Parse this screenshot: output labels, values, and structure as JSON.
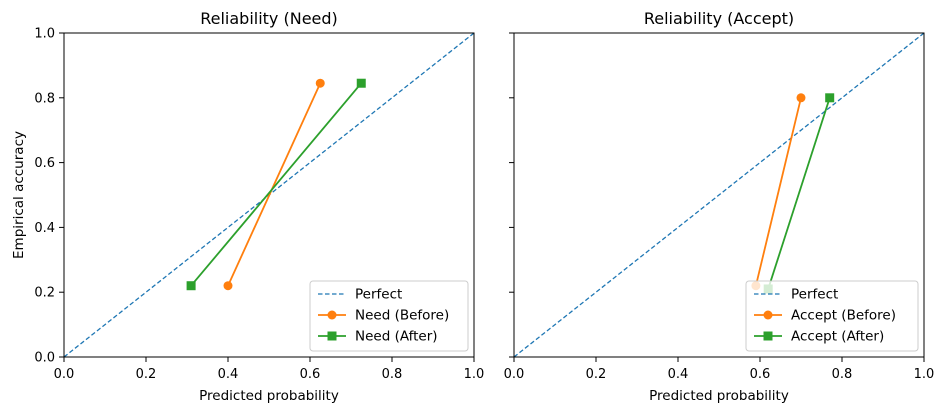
{
  "chart_data": [
    {
      "type": "line",
      "title": "Reliability (Need)",
      "xlabel": "Predicted probability",
      "ylabel": "Empirical accuracy",
      "xlim": [
        0.0,
        1.0
      ],
      "ylim": [
        0.0,
        1.0
      ],
      "xticks": [
        "0.0",
        "0.2",
        "0.4",
        "0.6",
        "0.8",
        "1.0"
      ],
      "yticks": [
        "0.0",
        "0.2",
        "0.4",
        "0.6",
        "0.8",
        "1.0"
      ],
      "legend_position": "lower-right",
      "series": [
        {
          "name": "Perfect",
          "style": "dashed",
          "marker": "none",
          "color": "#1f77b4",
          "x": [
            0.0,
            1.0
          ],
          "y": [
            0.0,
            1.0
          ]
        },
        {
          "name": "Need (Before)",
          "style": "solid",
          "marker": "circle",
          "color": "#ff7f0e",
          "x": [
            0.4,
            0.625
          ],
          "y": [
            0.22,
            0.845
          ]
        },
        {
          "name": "Need (After)",
          "style": "solid",
          "marker": "square",
          "color": "#2ca02c",
          "x": [
            0.31,
            0.725
          ],
          "y": [
            0.22,
            0.845
          ]
        }
      ]
    },
    {
      "type": "line",
      "title": "Reliability (Accept)",
      "xlabel": "Predicted probability",
      "ylabel": "",
      "xlim": [
        0.0,
        1.0
      ],
      "ylim": [
        0.0,
        1.0
      ],
      "xticks": [
        "0.0",
        "0.2",
        "0.4",
        "0.6",
        "0.8",
        "1.0"
      ],
      "yticks": [],
      "legend_position": "lower-right",
      "series": [
        {
          "name": "Perfect",
          "style": "dashed",
          "marker": "none",
          "color": "#1f77b4",
          "x": [
            0.0,
            1.0
          ],
          "y": [
            0.0,
            1.0
          ]
        },
        {
          "name": "Accept (Before)",
          "style": "solid",
          "marker": "circle",
          "color": "#ff7f0e",
          "x": [
            0.59,
            0.7
          ],
          "y": [
            0.22,
            0.8
          ]
        },
        {
          "name": "Accept (After)",
          "style": "solid",
          "marker": "square",
          "color": "#2ca02c",
          "x": [
            0.62,
            0.77
          ],
          "y": [
            0.21,
            0.8
          ]
        }
      ]
    }
  ]
}
